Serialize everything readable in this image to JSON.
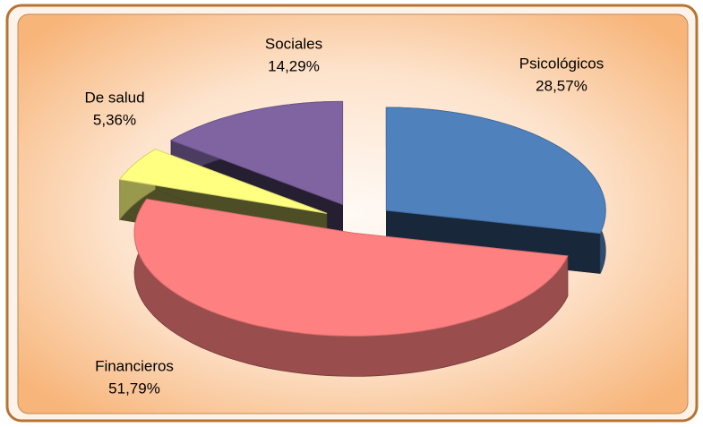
{
  "chart_data": {
    "type": "pie",
    "categories": [
      "Psicológicos",
      "Financieros",
      "De salud",
      "Sociales"
    ],
    "values": [
      28.57,
      51.79,
      5.36,
      14.29
    ],
    "value_labels": [
      "28,57%",
      "51,79%",
      "5,36%",
      "14,29%"
    ],
    "colors": [
      "#4f81bd",
      "#ff8080",
      "#ffff80",
      "#8064a2"
    ]
  }
}
